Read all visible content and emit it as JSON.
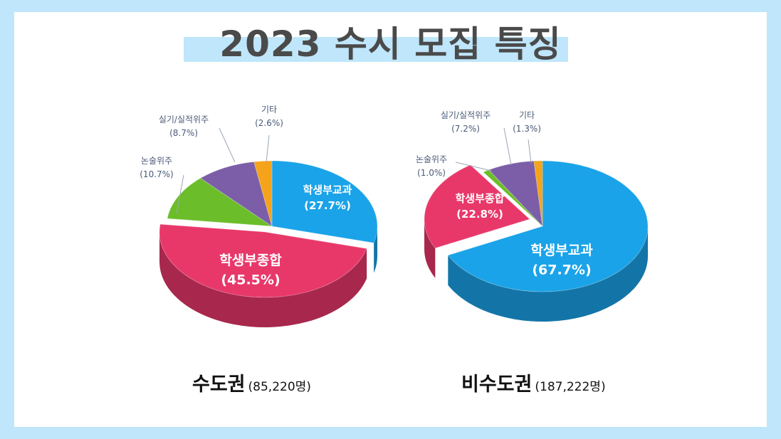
{
  "title": "2023 수시 모집 특징",
  "colors": {
    "student_subject": "#1aa3e8",
    "student_comprehensive": "#e8386a",
    "essay": "#6cbd2a",
    "practical": "#7b5ea7",
    "other": "#f5a31a",
    "label_white": "#ffffff",
    "label_gray": "#4a5a78"
  },
  "captions": {
    "left_main": "수도권",
    "left_sub": "(85,220명)",
    "right_main": "비수도권",
    "right_sub": "(187,222명)"
  },
  "chart_data": [
    {
      "type": "pie",
      "title": "수도권 (85,220명)",
      "slices": [
        {
          "name": "학생부교과",
          "value": 27.7,
          "label": "(27.7%)",
          "color": "#1aa3e8"
        },
        {
          "name": "학생부종합",
          "value": 45.5,
          "label": "(45.5%)",
          "color": "#e8386a"
        },
        {
          "name": "논술위주",
          "value": 10.7,
          "label": "(10.7%)",
          "color": "#6cbd2a"
        },
        {
          "name": "실기/실적위주",
          "value": 8.7,
          "label": "(8.7%)",
          "color": "#7b5ea7"
        },
        {
          "name": "기타",
          "value": 2.6,
          "label": "(2.6%)",
          "color": "#f5a31a"
        }
      ]
    },
    {
      "type": "pie",
      "title": "비수도권 (187,222명)",
      "slices": [
        {
          "name": "학생부교과",
          "value": 67.7,
          "label": "(67.7%)",
          "color": "#1aa3e8"
        },
        {
          "name": "학생부종합",
          "value": 22.8,
          "label": "(22.8%)",
          "color": "#e8386a"
        },
        {
          "name": "논술위주",
          "value": 1.0,
          "label": "(1.0%)",
          "color": "#6cbd2a"
        },
        {
          "name": "실기/실적위주",
          "value": 7.2,
          "label": "(7.2%)",
          "color": "#7b5ea7"
        },
        {
          "name": "기타",
          "value": 1.3,
          "label": "(1.3%)",
          "color": "#f5a31a"
        }
      ]
    }
  ]
}
